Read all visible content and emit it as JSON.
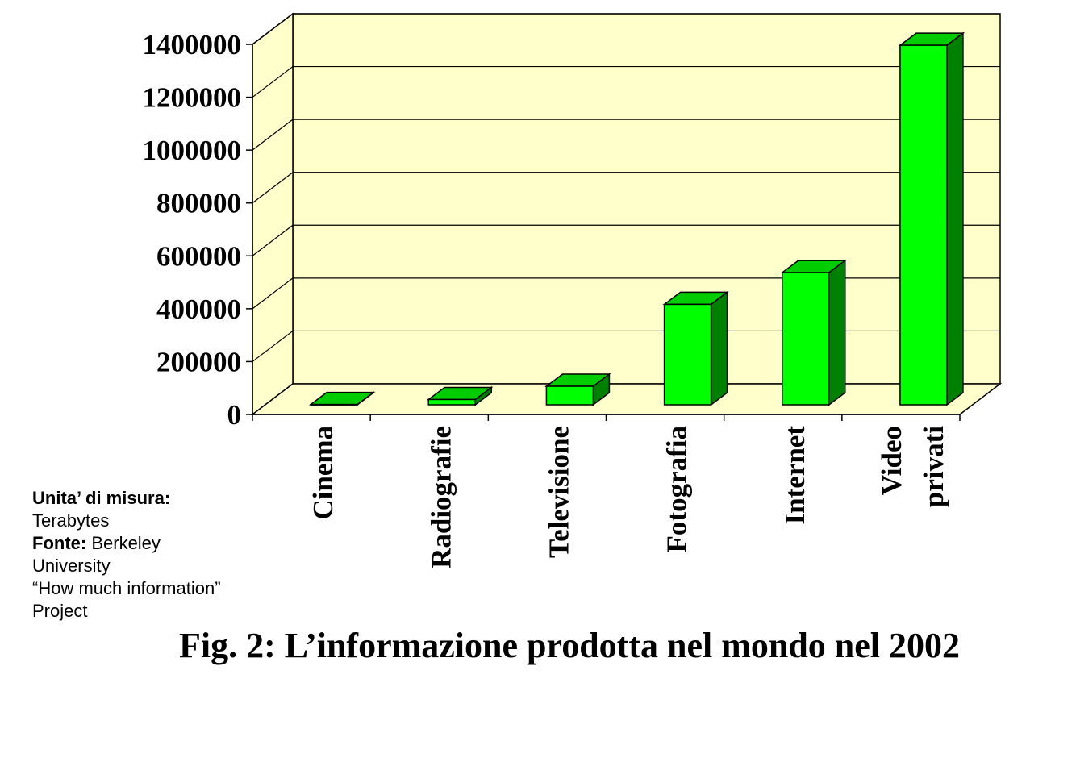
{
  "chart_data": {
    "type": "bar",
    "style": "3d-column",
    "categories": [
      [
        "Cinema"
      ],
      [
        "Radiografie"
      ],
      [
        "Televisione"
      ],
      [
        "Fotografia"
      ],
      [
        "Internet"
      ],
      [
        "Video",
        "privati"
      ]
    ],
    "values": [
      1000,
      20000,
      70000,
      380000,
      500000,
      1360000
    ],
    "ylim": [
      0,
      1400000
    ],
    "yticks": [
      "0",
      "200000",
      "400000",
      "600000",
      "800000",
      "1000000",
      "1200000",
      "1400000"
    ],
    "grid": true,
    "colors": {
      "bar_front": "#00ff00",
      "bar_top": "#00cc00",
      "bar_side": "#008000",
      "wall": "#ffffcc",
      "floor": "#ffffcc"
    }
  },
  "notes": {
    "unit_label": "Unita’ di misura:",
    "unit_value": "Terabytes",
    "source_label": "Fonte:",
    "source_value_1": "Berkeley",
    "source_value_2": "University",
    "source_value_3": "“How much information”",
    "source_value_4": "Project"
  },
  "caption": "Fig. 2: L’informazione prodotta nel mondo nel 2002"
}
